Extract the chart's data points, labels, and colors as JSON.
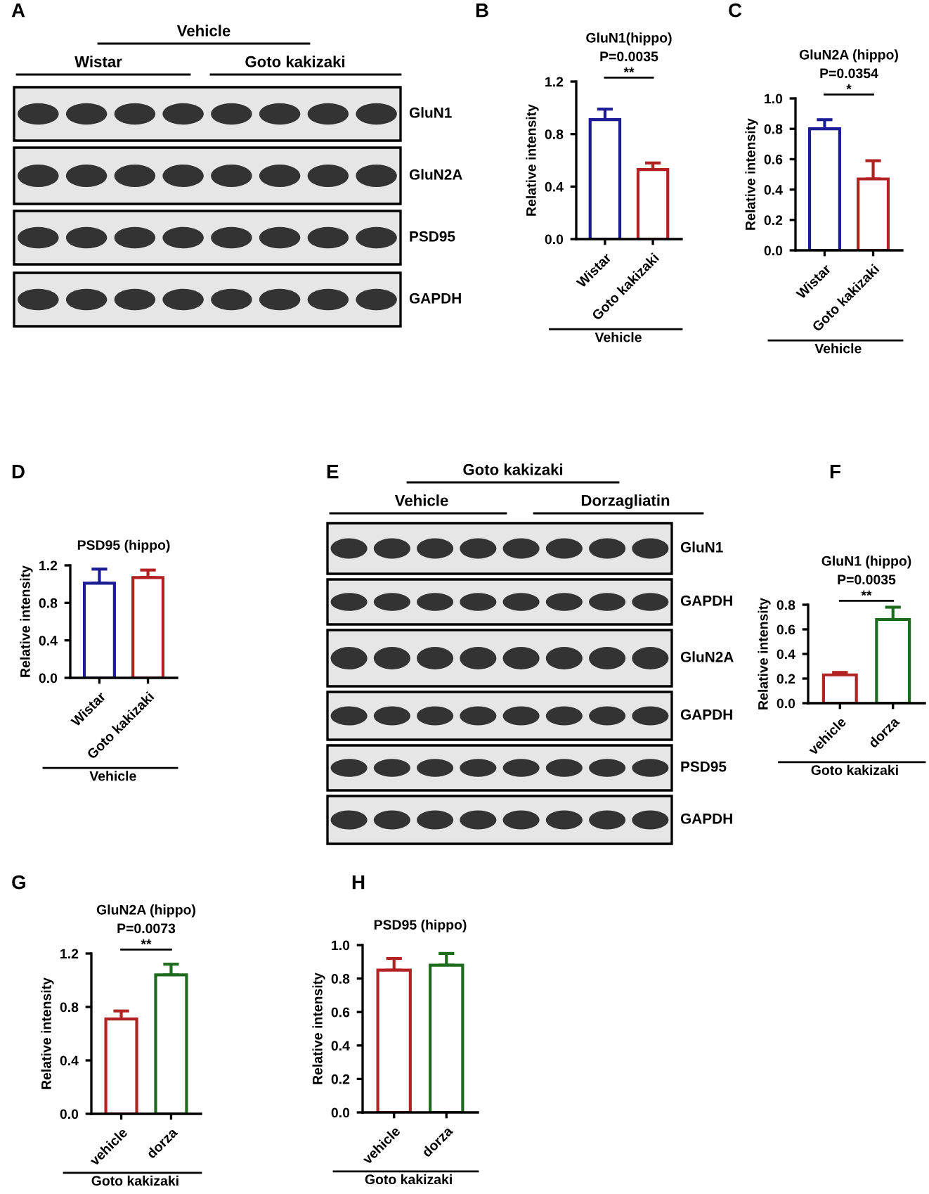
{
  "chart_data": [
    {
      "type": "other",
      "annotations": [
        "A",
        "Vehicle",
        "Wistar",
        "Goto kakizaki",
        "GluN1",
        "GluN2A",
        "PSD95",
        "GAPDH"
      ]
    },
    {
      "type": "bar",
      "title": "GluN1(hippo)",
      "ylabel": "Relative intensity",
      "xlabel": "Vehicle",
      "annotations": [
        "B",
        "P=0.0035",
        "**"
      ],
      "categories": [
        "Wistar",
        "Goto kakizaki"
      ],
      "values": [
        0.91,
        0.53
      ],
      "errors": [
        [
          0.91,
          0.99
        ],
        [
          0.53,
          0.58
        ]
      ],
      "colors": [
        "#1c1c96",
        "#b22222"
      ],
      "ylim": [
        0,
        1.2
      ],
      "yticks": [
        {
          "value": 0,
          "label": "0.0"
        },
        {
          "value": 0.4,
          "label": "0.4"
        },
        {
          "value": 0.8,
          "label": "0.8"
        },
        {
          "value": 1.2,
          "label": "1.2"
        }
      ]
    },
    {
      "type": "bar",
      "title": "GluN2A (hippo)",
      "ylabel": "Relative intensity",
      "xlabel": "Vehicle",
      "annotations": [
        "C",
        "P=0.0354",
        "*"
      ],
      "categories": [
        "Wistar",
        "Goto kakizaki"
      ],
      "values": [
        0.8,
        0.47
      ],
      "errors": [
        [
          0.8,
          0.86
        ],
        [
          0.47,
          0.59
        ]
      ],
      "colors": [
        "#1c1c96",
        "#b22222"
      ],
      "ylim": [
        0,
        1.0
      ],
      "yticks": [
        {
          "value": 0,
          "label": "0.0"
        },
        {
          "value": 0.2,
          "label": "0.2"
        },
        {
          "value": 0.4,
          "label": "0.4"
        },
        {
          "value": 0.6,
          "label": "0.6"
        },
        {
          "value": 0.8,
          "label": "0.8"
        },
        {
          "value": 1,
          "label": "1.0"
        }
      ]
    },
    {
      "type": "bar",
      "title": "PSD95 (hippo)",
      "ylabel": "Relative intensity",
      "xlabel": "Vehicle",
      "annotations": [
        "D"
      ],
      "categories": [
        "Wistar",
        "Goto kakizaki"
      ],
      "values": [
        1.01,
        1.07
      ],
      "errors": [
        [
          1.01,
          1.16
        ],
        [
          1.07,
          1.15
        ]
      ],
      "colors": [
        "#1c1c96",
        "#b22222"
      ],
      "ylim": [
        0,
        1.2
      ],
      "yticks": [
        {
          "value": 0,
          "label": "0.0"
        },
        {
          "value": 0.4,
          "label": "0.4"
        },
        {
          "value": 0.8,
          "label": "0.8"
        },
        {
          "value": 1.2,
          "label": "1.2"
        }
      ]
    },
    {
      "type": "other",
      "annotations": [
        "E",
        "Goto kakizaki",
        "Vehicle",
        "Dorzagliatin",
        "GluN1",
        "GAPDH",
        "GluN2A",
        "GAPDH",
        "PSD95",
        "GAPDH"
      ]
    },
    {
      "type": "bar",
      "title": "GluN1 (hippo)",
      "ylabel": "Relative intensity",
      "xlabel": "Goto kakizaki",
      "annotations": [
        "F",
        "P=0.0035",
        "**"
      ],
      "categories": [
        "vehicle",
        "dorza"
      ],
      "values": [
        0.23,
        0.68
      ],
      "errors": [
        [
          0.23,
          0.25
        ],
        [
          0.68,
          0.78
        ]
      ],
      "colors": [
        "#b22222",
        "#1e6b1e"
      ],
      "ylim": [
        0,
        0.8
      ],
      "yticks": [
        {
          "value": 0,
          "label": "0.0"
        },
        {
          "value": 0.2,
          "label": "0.2"
        },
        {
          "value": 0.4,
          "label": "0.4"
        },
        {
          "value": 0.6,
          "label": "0.6"
        },
        {
          "value": 0.8,
          "label": "0.8"
        }
      ]
    },
    {
      "type": "bar",
      "title": "GluN2A (hippo)",
      "ylabel": "Relative intensity",
      "xlabel": "Goto kakizaki",
      "annotations": [
        "G",
        "P=0.0073",
        "**"
      ],
      "categories": [
        "vehicle",
        "dorza"
      ],
      "values": [
        0.71,
        1.04
      ],
      "errors": [
        [
          0.71,
          0.77
        ],
        [
          1.04,
          1.12
        ]
      ],
      "colors": [
        "#b22222",
        "#1e6b1e"
      ],
      "ylim": [
        0,
        1.2
      ],
      "yticks": [
        {
          "value": 0,
          "label": "0.0"
        },
        {
          "value": 0.4,
          "label": "0.4"
        },
        {
          "value": 0.8,
          "label": "0.8"
        },
        {
          "value": 1.2,
          "label": "1.2"
        }
      ]
    },
    {
      "type": "bar",
      "title": "PSD95 (hippo)",
      "ylabel": "Relative intensity",
      "xlabel": "Goto kakizaki",
      "annotations": [
        "H"
      ],
      "categories": [
        "vehicle",
        "dorza"
      ],
      "values": [
        0.85,
        0.88
      ],
      "errors": [
        [
          0.85,
          0.92
        ],
        [
          0.88,
          0.95
        ]
      ],
      "colors": [
        "#b22222",
        "#1e6b1e"
      ],
      "ylim": [
        0,
        1.0
      ],
      "yticks": [
        {
          "value": 0,
          "label": "0.0"
        },
        {
          "value": 0.2,
          "label": "0.2"
        },
        {
          "value": 0.4,
          "label": "0.4"
        },
        {
          "value": 0.6,
          "label": "0.6"
        },
        {
          "value": 0.8,
          "label": "0.8"
        },
        {
          "value": 1,
          "label": "1.0"
        }
      ]
    }
  ]
}
